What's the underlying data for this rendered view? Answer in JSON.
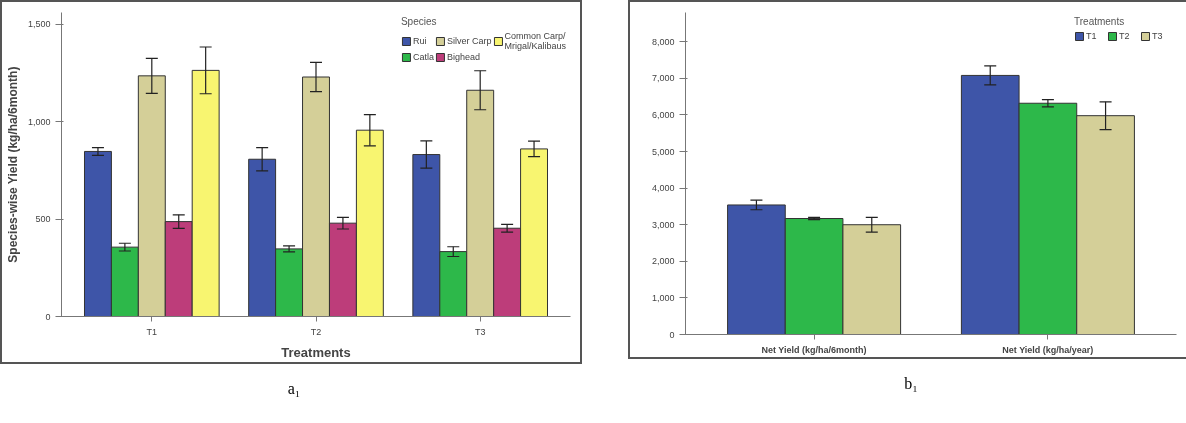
{
  "chart_data": [
    {
      "type": "bar",
      "categories": [
        "T1",
        "T2",
        "T3"
      ],
      "xlabel": "Treatments",
      "ylabel": "Species-wise Yield (kg/ha/6month)",
      "legend_title": "Species",
      "legend": "top right",
      "grid": false,
      "ylim": [
        0,
        1560
      ],
      "yticks": [
        0,
        {
          "value": 500,
          "label": "500"
        },
        {
          "value": 1000,
          "label": "1,000"
        },
        {
          "value": 1500,
          "label": "1,500"
        }
      ],
      "annotations": [
        "a₁"
      ],
      "series": [
        {
          "name": "Rui",
          "color": "#3e55a8",
          "values": [
            847,
            807,
            831
          ],
          "errors": [
            20,
            60,
            70
          ]
        },
        {
          "name": "Catla",
          "color": "#2db84a",
          "values": [
            356,
            347,
            333
          ],
          "errors": [
            20,
            15,
            25
          ]
        },
        {
          "name": "Silver Carp",
          "color": "#d4cf98",
          "values": [
            1235,
            1229,
            1161
          ],
          "errors": [
            90,
            75,
            100
          ]
        },
        {
          "name": "Bighead",
          "color": "#bd3d7a",
          "values": [
            487,
            479,
            453
          ],
          "errors": [
            35,
            30,
            20
          ]
        },
        {
          "name": "Common Carp/\nMrigal/Kalibaus",
          "color": "#f8f570",
          "values": [
            1263,
            956,
            860
          ],
          "errors": [
            120,
            80,
            40
          ]
        }
      ]
    },
    {
      "type": "bar",
      "categories": [
        "Net Yield (kg/ha/6month)",
        "Net Yield (kg/ha/year)"
      ],
      "legend_title": "Treatments",
      "legend": "top right",
      "grid": false,
      "ylim": [
        0,
        8800
      ],
      "yticks": [
        0,
        {
          "value": 1000,
          "label": "1,000"
        },
        {
          "value": 2000,
          "label": "2,000"
        },
        {
          "value": 3000,
          "label": "3,000"
        },
        {
          "value": 4000,
          "label": "4,000"
        },
        {
          "value": 5000,
          "label": "5,000"
        },
        {
          "value": 6000,
          "label": "6,000"
        },
        {
          "value": 7000,
          "label": "7,000"
        },
        {
          "value": 8000,
          "label": "8,000"
        }
      ],
      "annotations": [
        "b₁"
      ],
      "series": [
        {
          "name": "T1",
          "color": "#3e55a8",
          "values": [
            3540,
            7080
          ],
          "errors": [
            130,
            260
          ]
        },
        {
          "name": "T2",
          "color": "#2db84a",
          "values": [
            3170,
            6320
          ],
          "errors": [
            30,
            100
          ]
        },
        {
          "name": "T3",
          "color": "#d4cf98",
          "values": [
            3000,
            5980
          ],
          "errors": [
            200,
            380
          ]
        }
      ]
    }
  ]
}
